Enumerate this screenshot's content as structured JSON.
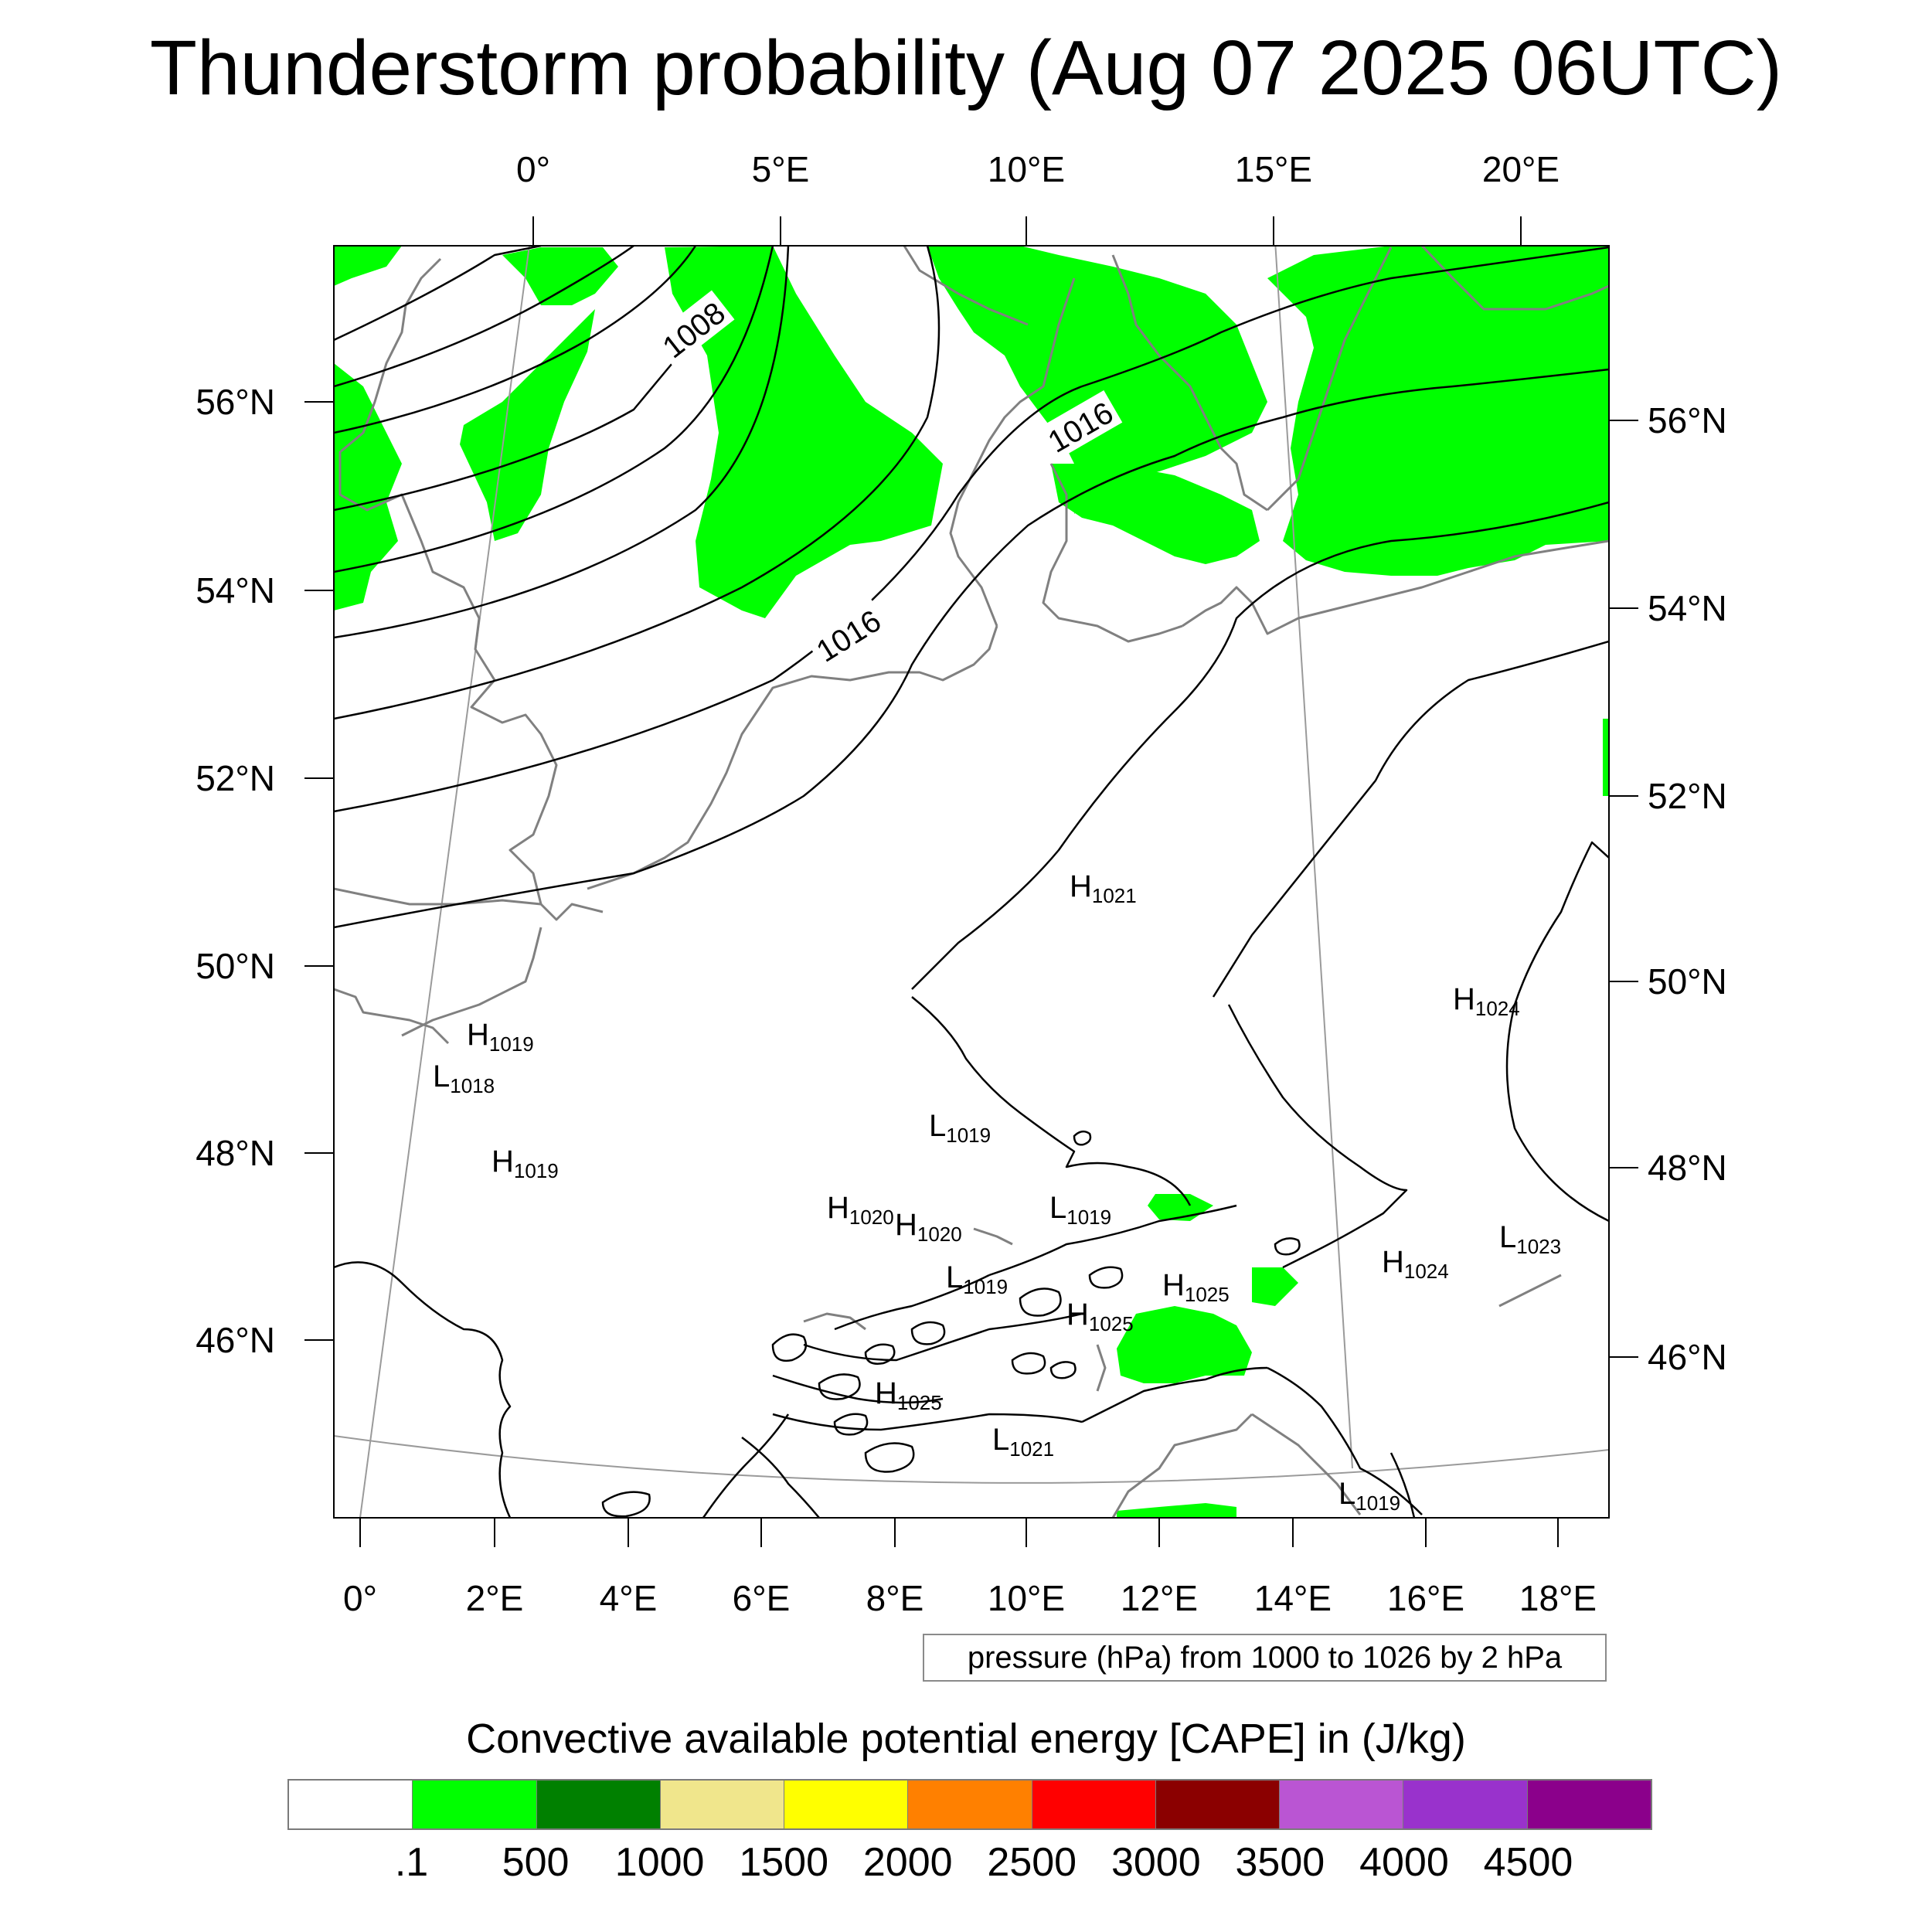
{
  "title": "Thunderstorm probability (Aug 07 2025 06UTC)",
  "map": {
    "top_lon_labels": [
      "0°",
      "5°E",
      "10°E",
      "15°E",
      "20°E"
    ],
    "bottom_lon_labels": [
      "0°",
      "2°E",
      "4°E",
      "6°E",
      "8°E",
      "10°E",
      "12°E",
      "14°E",
      "16°E",
      "18°E"
    ],
    "left_lat_labels": [
      "56°N",
      "54°N",
      "52°N",
      "50°N",
      "48°N",
      "46°N"
    ],
    "right_lat_labels": [
      "56°N",
      "54°N",
      "52°N",
      "50°N",
      "48°N",
      "46°N"
    ],
    "isobar_labels": [
      "1008",
      "1016",
      "1016"
    ],
    "pressure_centers": [
      {
        "letter": "H",
        "value": "1021"
      },
      {
        "letter": "H",
        "value": "1019"
      },
      {
        "letter": "L",
        "value": "1018"
      },
      {
        "letter": "H",
        "value": "1019"
      },
      {
        "letter": "H",
        "value": "1024"
      },
      {
        "letter": "L",
        "value": "1019"
      },
      {
        "letter": "H",
        "value": "1020"
      },
      {
        "letter": "H",
        "value": "1020"
      },
      {
        "letter": "L",
        "value": "1019"
      },
      {
        "letter": "L",
        "value": "1019"
      },
      {
        "letter": "H",
        "value": "1025"
      },
      {
        "letter": "H",
        "value": "1025"
      },
      {
        "letter": "H",
        "value": "1025"
      },
      {
        "letter": "L",
        "value": "1021"
      },
      {
        "letter": "H",
        "value": "1024"
      },
      {
        "letter": "L",
        "value": "1023"
      },
      {
        "letter": "L",
        "value": "1019"
      }
    ],
    "colors": {
      "cape_fill": "#00ff00",
      "isobar": "#000000",
      "coastline": "#808080",
      "graticule": "#9a9a9a",
      "frame": "#000000"
    }
  },
  "pressure_info": "pressure (hPa) from 1000 to 1026 by 2 hPa",
  "legend": {
    "title": "Convective available potential energy [CAPE] in (J/kg)",
    "colors": [
      "#ffffff",
      "#00ff00",
      "#008000",
      "#f0e68c",
      "#ffff00",
      "#ff8000",
      "#ff0000",
      "#8b0000",
      "#ba55d3",
      "#9932cc",
      "#8b008b"
    ],
    "labels": [
      ".1",
      "500",
      "1000",
      "1500",
      "2000",
      "2500",
      "3000",
      "3500",
      "4000",
      "4500"
    ]
  }
}
